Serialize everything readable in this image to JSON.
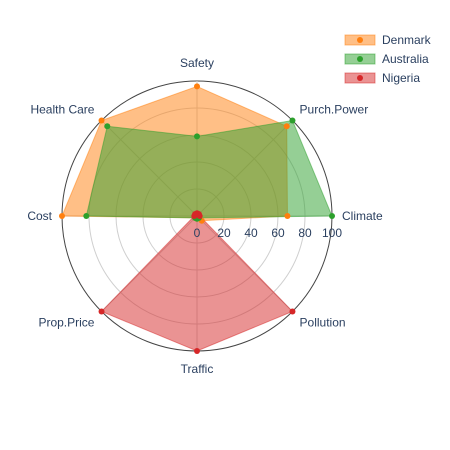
{
  "chart_data": {
    "type": "radar",
    "axes": [
      "Safety",
      "Purch.Power",
      "Climate",
      "Pollution",
      "Traffic",
      "Prop.Price",
      "Cost",
      "Health Care"
    ],
    "radial_range": [
      0,
      100
    ],
    "radial_ticks": [
      "0",
      "20",
      "40",
      "60",
      "80",
      "100"
    ],
    "series": [
      {
        "name": "Denmark",
        "color": "#ff7f0e",
        "values": [
          96,
          94,
          67,
          5,
          2,
          2,
          100,
          100
        ]
      },
      {
        "name": "Australia",
        "color": "#2ca02c",
        "values": [
          59,
          100,
          100,
          2,
          2,
          2,
          82,
          94
        ]
      },
      {
        "name": "Nigeria",
        "color": "#d62728",
        "values": [
          2,
          2,
          2,
          100,
          100,
          100,
          2,
          2
        ]
      }
    ],
    "legend_position": "top-right"
  }
}
